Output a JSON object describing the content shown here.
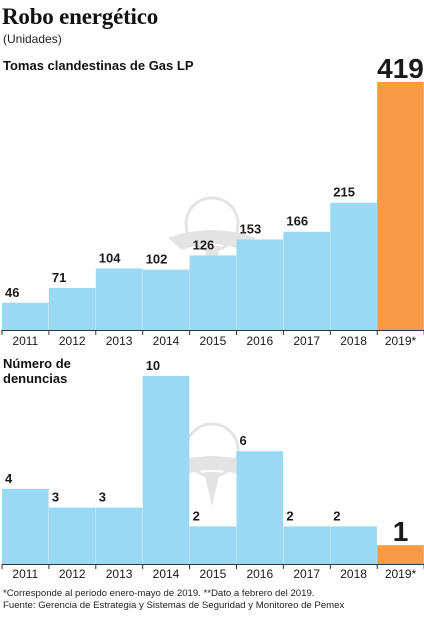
{
  "header": {
    "title": "Robo energético",
    "subtitle": "(Unidades)"
  },
  "colors": {
    "bar": "#99d9f4",
    "highlight": "#f89b47",
    "axis": "#333333",
    "watermark": "#cfcfcf"
  },
  "chart_data": [
    {
      "type": "bar",
      "title": "Tomas clandestinas de Gas LP",
      "categories": [
        "2011",
        "2012",
        "2013",
        "2014",
        "2015",
        "2016",
        "2017",
        "2018",
        "2019*"
      ],
      "values": [
        46,
        71,
        104,
        102,
        126,
        153,
        166,
        215,
        419
      ],
      "highlight_category": "2019*",
      "ylim": [
        0,
        419
      ]
    },
    {
      "type": "bar",
      "title": "Número de denuncias",
      "categories": [
        "2011",
        "2012",
        "2013",
        "2014",
        "2015",
        "2016",
        "2017",
        "2018",
        "2019*"
      ],
      "values": [
        4,
        3,
        3,
        10,
        2,
        6,
        2,
        2,
        1
      ],
      "highlight_category": "2019*",
      "ylim": [
        0,
        10
      ]
    }
  ],
  "footnotes": [
    "*Corresponde al periodo enero-mayo de 2019. **Dato a febrero del 2019.",
    "Fuente: Gerencia de Estrategia y Sistemas de Seguridad y Monitoreo de Pemex"
  ]
}
